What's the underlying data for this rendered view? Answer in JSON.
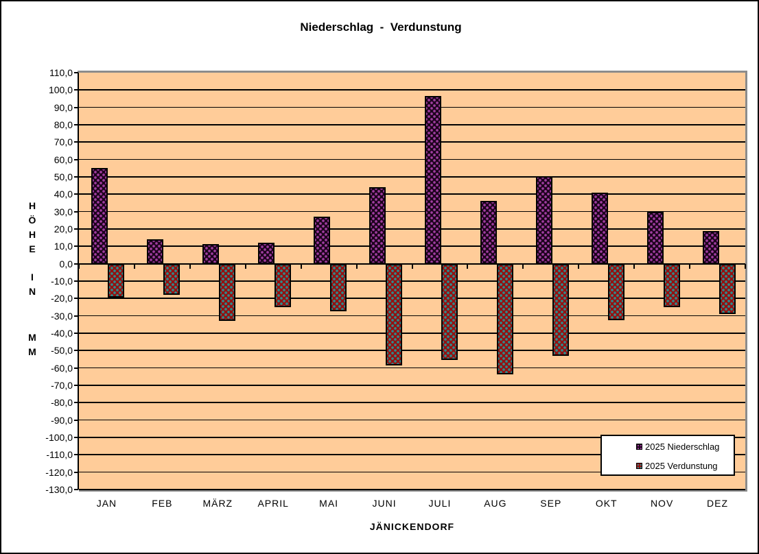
{
  "window": {
    "background": "#FFFFFF",
    "frame_border": "#000000"
  },
  "chart_data": {
    "type": "bar",
    "title": "Niederschlag  -  Verdunstung",
    "categories": [
      "JAN",
      "FEB",
      "MÄRZ",
      "APRIL",
      "MAI",
      "JUNI",
      "JULI",
      "AUG",
      "SEP",
      "OKT",
      "NOV",
      "DEZ"
    ],
    "series": [
      {
        "name": "2025 Niederschlag",
        "values": [
          55,
          14,
          11.5,
          12,
          27,
          44,
          96.5,
          36,
          50.5,
          41,
          30,
          19
        ],
        "pattern": {
          "base": "#1E041E",
          "dot": "#A03CA0"
        }
      },
      {
        "name": "2025 Verdunstung",
        "values": [
          -19.5,
          -18,
          -33,
          -25,
          -27.5,
          -58.5,
          -55.5,
          -63.5,
          -53,
          -32.5,
          -25,
          -29
        ],
        "pattern": {
          "base": "#921212",
          "dot": "#2E8C8C"
        }
      }
    ],
    "xlabel": "JÄNICKENDORF",
    "ylabel": "HÖHE IN MM",
    "ylabel_words": [
      "HÖHE",
      "IN",
      "MM"
    ],
    "ylim": [
      -130,
      110
    ],
    "ytick_step": 10,
    "ytick_labels": [
      "110,0",
      "100,0",
      "90,0",
      "80,0",
      "70,0",
      "60,0",
      "50,0",
      "40,0",
      "30,0",
      "20,0",
      "10,0",
      "0,0",
      "-10,0",
      "-20,0",
      "-30,0",
      "-40,0",
      "-50,0",
      "-60,0",
      "-70,0",
      "-80,0",
      "-90,0",
      "-100,0",
      "-110,0",
      "-120,0",
      "-130,0"
    ],
    "grid": "horizontal",
    "grid_color": "#000000",
    "plot_bg": "#FFCC99",
    "plot_border": "#8C8C8C",
    "legend_position": "inside-bottom-right"
  }
}
